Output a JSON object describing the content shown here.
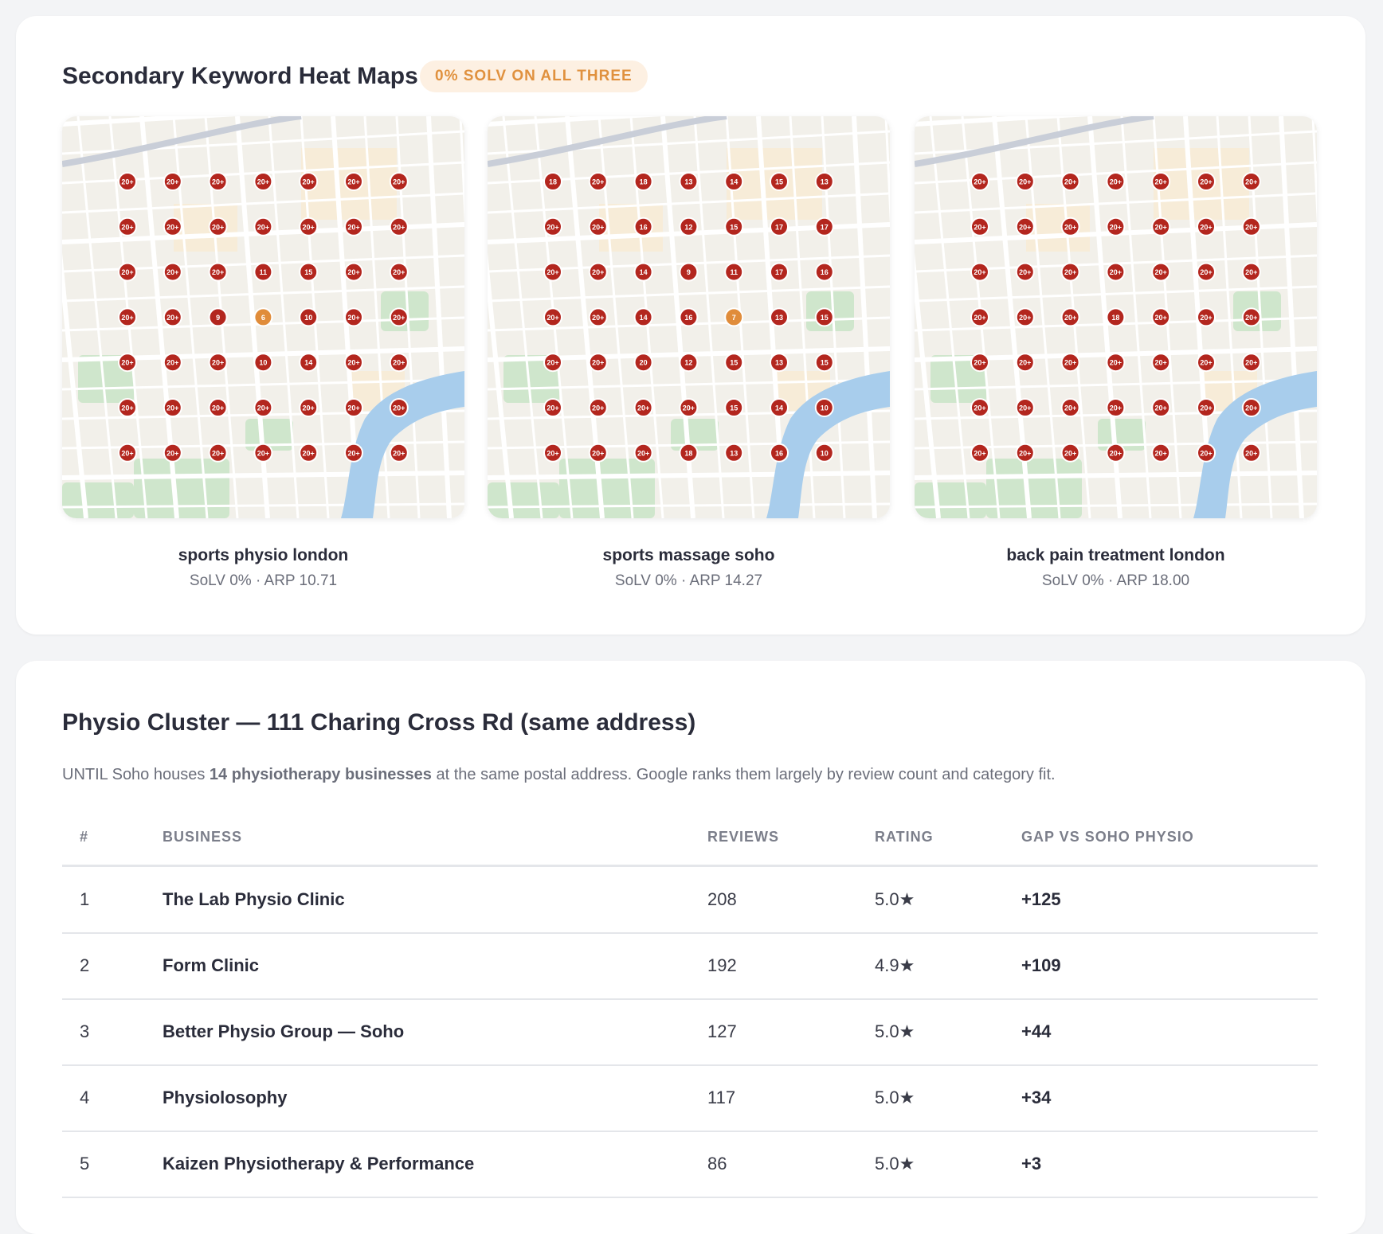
{
  "header": {
    "title": "Secondary Keyword Heat Maps",
    "badge": "0% SOLV ON ALL THREE"
  },
  "marker_colors": [
    {
      "max": 7,
      "color": "#e08c3a"
    },
    {
      "color": "#b3261e"
    }
  ],
  "maps": [
    {
      "keyword": "sports physio london",
      "stats": "SoLV 0% · ARP 10.71",
      "grid": [
        [
          "20+",
          "20+",
          "20+",
          "20+",
          "20+",
          "20+",
          "20+"
        ],
        [
          "20+",
          "20+",
          "20+",
          "20+",
          "20+",
          "20+",
          "20+"
        ],
        [
          "20+",
          "20+",
          "20+",
          "11",
          "15",
          "20+",
          "20+"
        ],
        [
          "20+",
          "20+",
          "9",
          "6",
          "10",
          "20+",
          "20+"
        ],
        [
          "20+",
          "20+",
          "20+",
          "10",
          "14",
          "20+",
          "20+"
        ],
        [
          "20+",
          "20+",
          "20+",
          "20+",
          "20+",
          "20+",
          "20+"
        ],
        [
          "20+",
          "20+",
          "20+",
          "20+",
          "20+",
          "20+",
          "20+"
        ]
      ]
    },
    {
      "keyword": "sports massage soho",
      "stats": "SoLV 0% · ARP 14.27",
      "grid": [
        [
          "18",
          "20+",
          "18",
          "13",
          "14",
          "15",
          "13"
        ],
        [
          "20+",
          "20+",
          "16",
          "12",
          "15",
          "17",
          "17"
        ],
        [
          "20+",
          "20+",
          "14",
          "9",
          "11",
          "17",
          "16"
        ],
        [
          "20+",
          "20+",
          "14",
          "16",
          "7",
          "13",
          "15"
        ],
        [
          "20+",
          "20+",
          "20",
          "12",
          "15",
          "13",
          "15"
        ],
        [
          "20+",
          "20+",
          "20+",
          "20+",
          "15",
          "14",
          "10"
        ],
        [
          "20+",
          "20+",
          "20+",
          "18",
          "13",
          "16",
          "10"
        ]
      ]
    },
    {
      "keyword": "back pain treatment london",
      "stats": "SoLV 0% · ARP 18.00",
      "grid": [
        [
          "20+",
          "20+",
          "20+",
          "20+",
          "20+",
          "20+",
          "20+"
        ],
        [
          "20+",
          "20+",
          "20+",
          "20+",
          "20+",
          "20+",
          "20+"
        ],
        [
          "20+",
          "20+",
          "20+",
          "20+",
          "20+",
          "20+",
          "20+"
        ],
        [
          "20+",
          "20+",
          "20+",
          "18",
          "20+",
          "20+",
          "20+"
        ],
        [
          "20+",
          "20+",
          "20+",
          "20+",
          "20+",
          "20+",
          "20+"
        ],
        [
          "20+",
          "20+",
          "20+",
          "20+",
          "20+",
          "20+",
          "20+"
        ],
        [
          "20+",
          "20+",
          "20+",
          "20+",
          "20+",
          "20+",
          "20+"
        ]
      ]
    }
  ],
  "cluster": {
    "title": "Physio Cluster — 111 Charing Cross Rd (same address)",
    "intro": {
      "before": "UNTIL Soho houses ",
      "bold": "14 physiotherapy businesses",
      "after": " at the same postal address. Google ranks them largely by review count and category fit."
    },
    "table": {
      "headers": [
        "#",
        "BUSINESS",
        "REVIEWS",
        "RATING",
        "GAP VS SOHO PHYSIO"
      ],
      "rows": [
        [
          "1",
          "The Lab Physio Clinic",
          "208",
          "5.0★",
          "+125"
        ],
        [
          "2",
          "Form Clinic",
          "192",
          "4.9★",
          "+109"
        ],
        [
          "3",
          "Better Physio Group — Soho",
          "127",
          "5.0★",
          "+44"
        ],
        [
          "4",
          "Physiolosophy",
          "117",
          "5.0★",
          "+34"
        ],
        [
          "5",
          "Kaizen Physiotherapy & Performance",
          "86",
          "5.0★",
          "+3"
        ]
      ]
    }
  }
}
